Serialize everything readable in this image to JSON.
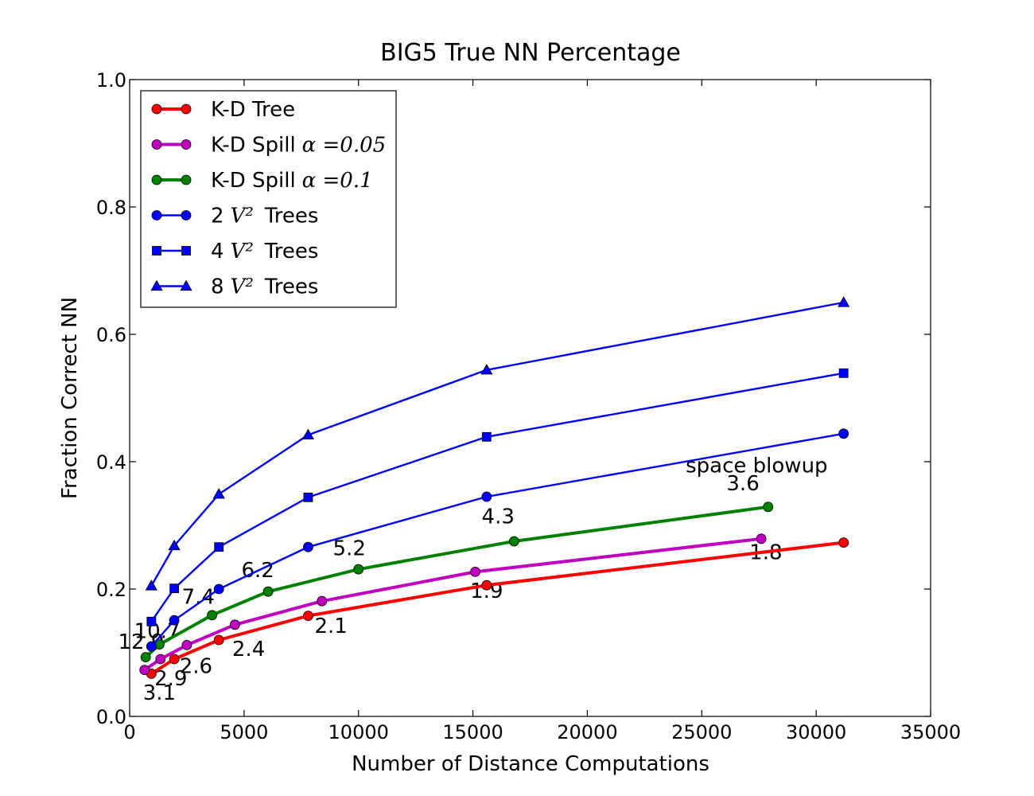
{
  "chart_data": {
    "type": "line",
    "title": "BIG5 True NN Percentage",
    "xlabel": "Number of Distance Computations",
    "ylabel": "Fraction Correct NN",
    "xlim": [
      0,
      35000
    ],
    "ylim": [
      0.0,
      1.0
    ],
    "xticks": [
      0,
      5000,
      10000,
      15000,
      20000,
      25000,
      30000,
      35000
    ],
    "xtick_labels": [
      "0",
      "5000",
      "10000",
      "15000",
      "20000",
      "25000",
      "30000",
      "35000"
    ],
    "yticks": [
      0.0,
      0.2,
      0.4,
      0.6,
      0.8,
      1.0
    ],
    "ytick_labels": [
      "0.0",
      "0.2",
      "0.4",
      "0.6",
      "0.8",
      "1.0"
    ],
    "grid": false,
    "legend_position": "top-left",
    "series": [
      {
        "name": "K-D Tree",
        "legend_text": "K-D Tree",
        "legend_math": "",
        "color": "#ff0000",
        "marker": "circle",
        "line_style": "thick",
        "x": [
          950,
          1950,
          3900,
          7800,
          15600,
          31200
        ],
        "y": [
          0.067,
          0.09,
          0.12,
          0.158,
          0.206,
          0.273
        ]
      },
      {
        "name": "K-D Spill α=0.05",
        "legend_text": "K-D Spill",
        "legend_math": "α =0.05",
        "color": "#bf00bf",
        "marker": "circle",
        "line_style": "thick",
        "x": [
          650,
          1350,
          2500,
          4600,
          8400,
          15100,
          27600
        ],
        "y": [
          0.073,
          0.09,
          0.112,
          0.144,
          0.181,
          0.227,
          0.279
        ]
      },
      {
        "name": "K-D Spill α=0.1",
        "legend_text": "K-D Spill",
        "legend_math": "α =0.1",
        "color": "#008000",
        "marker": "circle",
        "line_style": "thick",
        "x": [
          700,
          1300,
          3600,
          6050,
          10000,
          16800,
          27900
        ],
        "y": [
          0.093,
          0.113,
          0.159,
          0.196,
          0.231,
          0.275,
          0.329
        ]
      },
      {
        "name": "2 V² Trees",
        "legend_text": "2",
        "legend_math": "V²",
        "legend_suffix": "Trees",
        "color": "#0000ff",
        "marker": "circle",
        "line_style": "thin",
        "x": [
          950,
          1950,
          3900,
          7800,
          15600,
          31200
        ],
        "y": [
          0.11,
          0.151,
          0.2,
          0.266,
          0.345,
          0.444
        ]
      },
      {
        "name": "4 V² Trees",
        "legend_text": "4",
        "legend_math": "V²",
        "legend_suffix": "Trees",
        "color": "#0000ff",
        "marker": "square",
        "line_style": "thin",
        "x": [
          950,
          1950,
          3900,
          7800,
          15600,
          31200
        ],
        "y": [
          0.149,
          0.201,
          0.266,
          0.344,
          0.439,
          0.539
        ]
      },
      {
        "name": "8 V² Trees",
        "legend_text": "8",
        "legend_math": "V²",
        "legend_suffix": "Trees",
        "color": "#0000ff",
        "marker": "triangle",
        "line_style": "thin",
        "x": [
          950,
          1950,
          3900,
          7800,
          15600,
          31200
        ],
        "y": [
          0.205,
          0.268,
          0.349,
          0.442,
          0.544,
          0.65
        ]
      }
    ],
    "annotations": [
      {
        "text": "3.1",
        "x": 1300,
        "y": 0.026
      },
      {
        "text": "2.9",
        "x": 1800,
        "y": 0.049
      },
      {
        "text": "2.6",
        "x": 2900,
        "y": 0.068
      },
      {
        "text": "2.4",
        "x": 5200,
        "y": 0.095
      },
      {
        "text": "2.1",
        "x": 8800,
        "y": 0.131
      },
      {
        "text": "1.9",
        "x": 15600,
        "y": 0.186
      },
      {
        "text": "1.8",
        "x": 27800,
        "y": 0.247
      },
      {
        "text": "12.9",
        "x": 500,
        "y": 0.106
      },
      {
        "text": "10.7",
        "x": 1200,
        "y": 0.123
      },
      {
        "text": "7.4",
        "x": 3000,
        "y": 0.177
      },
      {
        "text": "6.2",
        "x": 5600,
        "y": 0.219
      },
      {
        "text": "5.2",
        "x": 9600,
        "y": 0.253
      },
      {
        "text": "4.3",
        "x": 16100,
        "y": 0.303
      },
      {
        "text": "3.6",
        "x": 26800,
        "y": 0.355
      },
      {
        "text": "space blowup",
        "x": 27400,
        "y": 0.383
      }
    ]
  }
}
